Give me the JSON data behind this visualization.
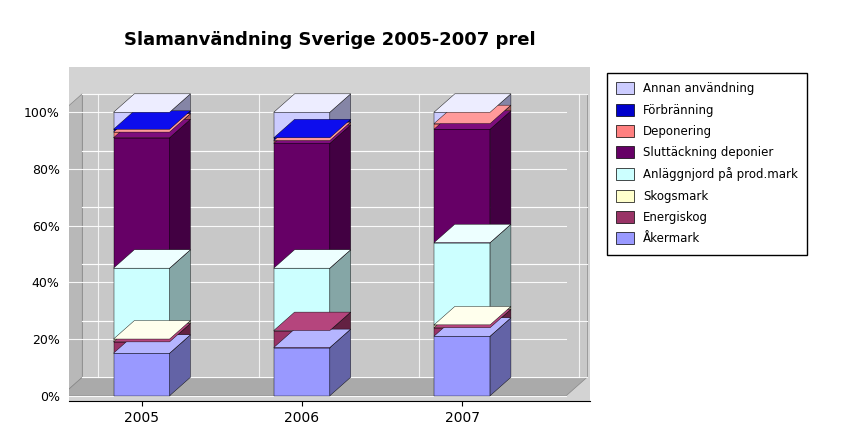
{
  "title": "Slamanvändning Sverige 2005-2007 prel",
  "years": [
    "2005",
    "2006",
    "2007"
  ],
  "categories": [
    "Åkermark",
    "Energiskog",
    "Skogsmark",
    "Anläggnjord på prod.mark",
    "Sluttäckning deponier",
    "Deponering",
    "Förbränning",
    "Annan användning"
  ],
  "values": {
    "2005": [
      15,
      4,
      1,
      25,
      46,
      2,
      1,
      6
    ],
    "2006": [
      17,
      6,
      0,
      22,
      44,
      1,
      1,
      9
    ],
    "2007": [
      21,
      3,
      1,
      29,
      40,
      2,
      0,
      4
    ]
  },
  "colors": [
    "#9999FF",
    "#993366",
    "#FFFFCC",
    "#CCFFFF",
    "#660066",
    "#FF8080",
    "#0000CC",
    "#CCCCFF"
  ],
  "background_color": "#C0C0C0",
  "plot_bg_color": "#D3D3D3",
  "ylim": [
    0,
    110
  ],
  "yticks": [
    0,
    20,
    40,
    60,
    80,
    100
  ],
  "ytick_labels": [
    "0%",
    "20%",
    "40%",
    "60%",
    "80%",
    "100%"
  ]
}
